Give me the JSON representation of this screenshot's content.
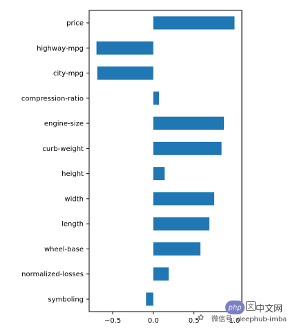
{
  "chart_data": {
    "type": "bar",
    "orientation": "horizontal",
    "categories": [
      "price",
      "highway-mpg",
      "city-mpg",
      "compression-ratio",
      "engine-size",
      "curb-weight",
      "height",
      "width",
      "length",
      "wheel-base",
      "normalized-losses",
      "symboling"
    ],
    "values": [
      1.0,
      -0.7,
      -0.69,
      0.07,
      0.87,
      0.84,
      0.14,
      0.75,
      0.69,
      0.58,
      0.19,
      -0.09
    ],
    "xlim": [
      -0.79,
      1.09
    ],
    "xticks": [
      "−0.5",
      "0.0",
      "0.5",
      "1.0"
    ],
    "xtick_values": [
      -0.5,
      0.0,
      0.5,
      1.0
    ],
    "bar_color": "#1f77b4",
    "grid": false,
    "legend": "none"
  },
  "watermark": {
    "badge": "php",
    "text_cn": "中文网",
    "text_cn_icon": "文",
    "sub": "微信号: deephub-imba",
    "icon": "wechat-icon"
  }
}
